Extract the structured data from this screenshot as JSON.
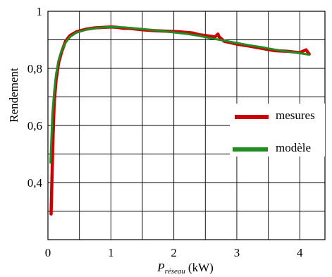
{
  "chart_data": {
    "type": "line",
    "ylabel": "Rendement",
    "xlabel_main": "P",
    "xlabel_sub": "réseau",
    "xlabel_unit": "(kW)",
    "xlim": [
      0,
      4.4
    ],
    "ylim": [
      0.2,
      1.0
    ],
    "x_ticks": [
      0,
      1,
      2,
      3,
      4
    ],
    "x_tick_labels": [
      "0",
      "1",
      "2",
      "3",
      "4"
    ],
    "y_ticks": [
      0.4,
      0.6,
      0.8,
      1.0
    ],
    "y_tick_labels": [
      "0,4",
      "0,6",
      "0,8",
      "1"
    ],
    "grid": true,
    "legend_position": "right",
    "series": [
      {
        "name": "mesures",
        "color": "#cc0000",
        "x": [
          0.05,
          0.08,
          0.1,
          0.13,
          0.17,
          0.22,
          0.28,
          0.35,
          0.45,
          0.6,
          0.75,
          0.9,
          1.0,
          1.1,
          1.2,
          1.3,
          1.5,
          1.7,
          1.9,
          2.1,
          2.2,
          2.3,
          2.4,
          2.5,
          2.6,
          2.65,
          2.7,
          2.72,
          2.8,
          3.0,
          3.2,
          3.4,
          3.6,
          3.8,
          4.0,
          4.1,
          4.15
        ],
        "y": [
          0.29,
          0.55,
          0.68,
          0.76,
          0.82,
          0.86,
          0.895,
          0.915,
          0.928,
          0.937,
          0.942,
          0.944,
          0.945,
          0.944,
          0.94,
          0.94,
          0.935,
          0.932,
          0.93,
          0.928,
          0.926,
          0.924,
          0.918,
          0.915,
          0.912,
          0.91,
          0.92,
          0.91,
          0.895,
          0.885,
          0.878,
          0.87,
          0.862,
          0.86,
          0.855,
          0.865,
          0.85
        ]
      },
      {
        "name": "modèle",
        "color": "#228b22",
        "x": [
          0.04,
          0.07,
          0.1,
          0.13,
          0.17,
          0.22,
          0.28,
          0.35,
          0.45,
          0.6,
          0.75,
          0.9,
          1.0,
          1.2,
          1.5,
          1.8,
          2.0,
          2.2,
          2.4,
          2.6,
          2.8,
          3.0,
          3.2,
          3.4,
          3.6,
          3.8,
          4.0,
          4.15
        ],
        "y": [
          0.47,
          0.64,
          0.72,
          0.78,
          0.83,
          0.865,
          0.89,
          0.91,
          0.925,
          0.935,
          0.941,
          0.944,
          0.945,
          0.944,
          0.938,
          0.931,
          0.926,
          0.921,
          0.914,
          0.905,
          0.897,
          0.889,
          0.881,
          0.874,
          0.866,
          0.859,
          0.853,
          0.848
        ]
      }
    ]
  }
}
